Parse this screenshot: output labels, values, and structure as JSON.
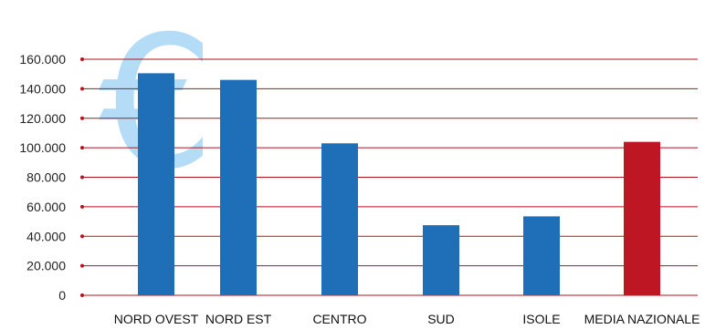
{
  "chart_data": {
    "type": "bar",
    "categories": [
      "NORD OVEST",
      "NORD EST",
      "CENTRO",
      "SUD",
      "ISOLE",
      "MEDIA NAZIONALE"
    ],
    "values": [
      150500,
      146000,
      103000,
      47500,
      53500,
      104000
    ],
    "ylim": [
      0,
      160000
    ],
    "y_ticks": [
      "0",
      "20.000",
      "40.000",
      "60.000",
      "80.000",
      "100.000",
      "120.000",
      "140.000",
      "160.000"
    ],
    "grid": true,
    "legend": "none",
    "decoration_symbol": "€"
  },
  "colors": {
    "bar": "#1f6fb8",
    "highlight_bar": "#be1622",
    "highlight_label": "#be1622",
    "gridline": "#b3121f",
    "euro_watermark": "#b4dcf6"
  },
  "highlight_index": 5
}
